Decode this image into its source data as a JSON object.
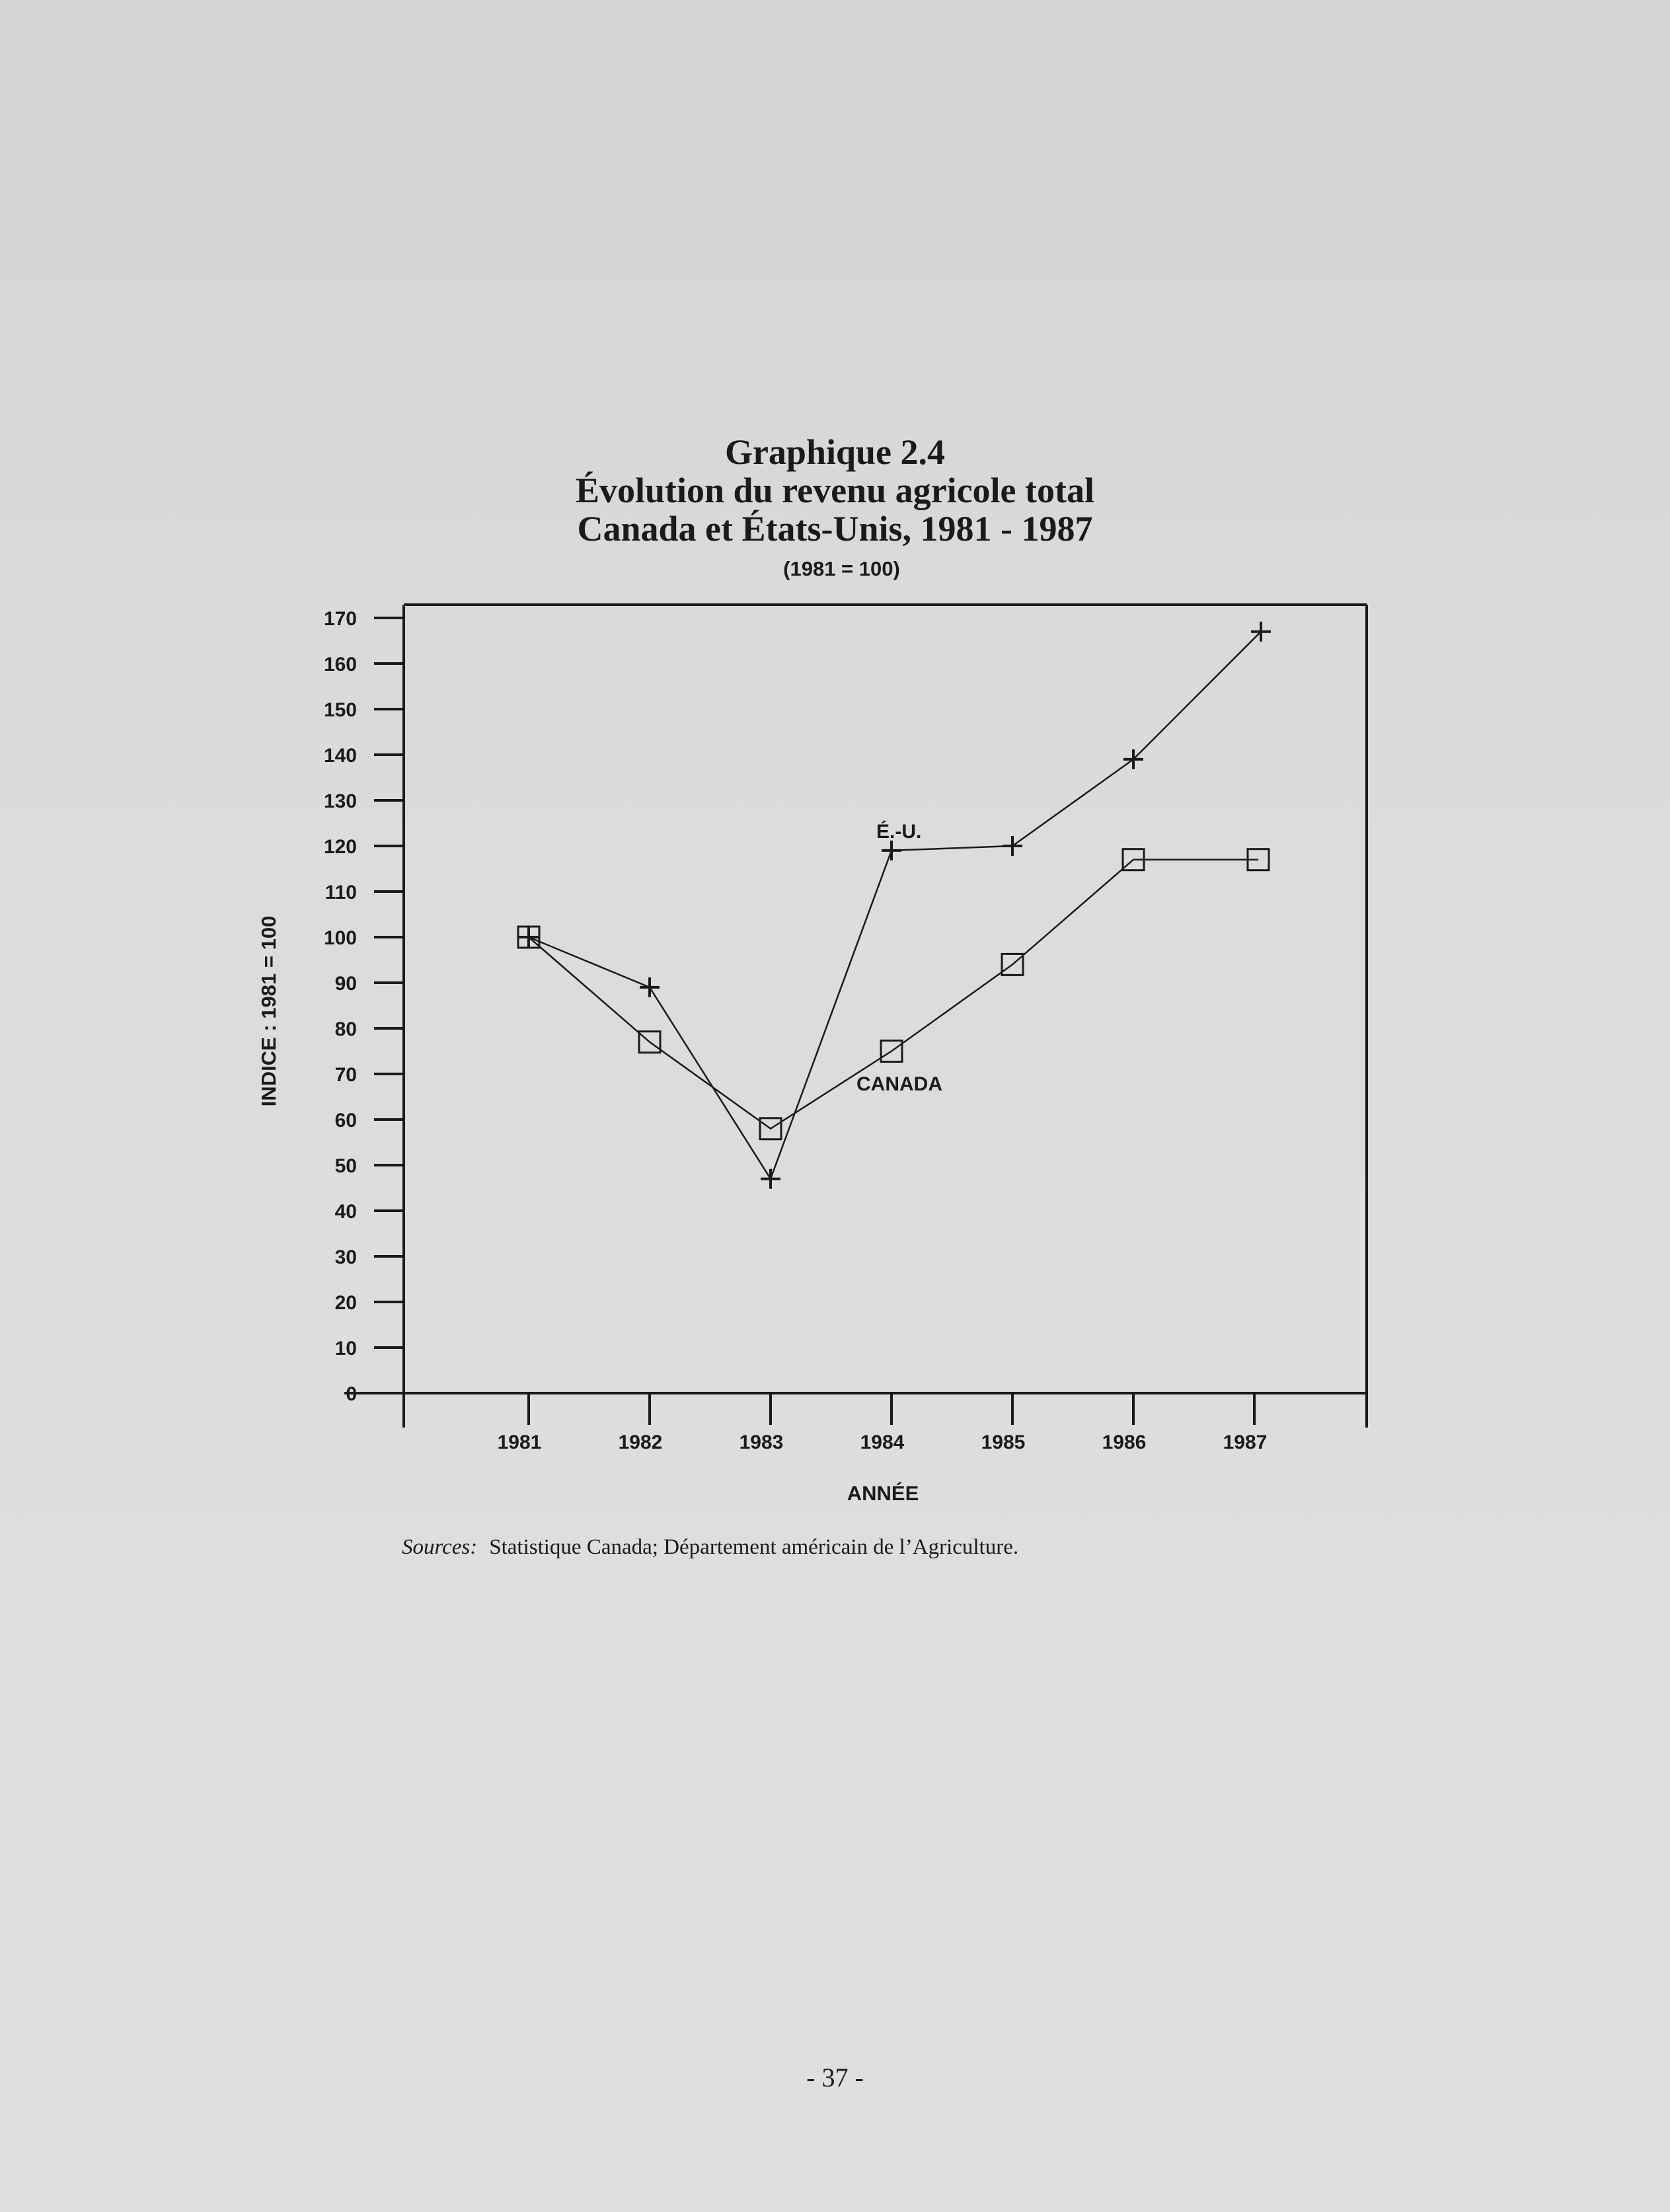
{
  "chart_data": {
    "type": "line",
    "title": "Graphique 2.4",
    "title_lines": [
      "Graphique 2.4",
      "Évolution du revenu agricole total",
      "Canada et États-Unis, 1981 - 1987"
    ],
    "subtitle": "(1981 = 100)",
    "xlabel": "ANNÉE",
    "ylabel": "INDICE : 1981 = 100",
    "categories": [
      "1981",
      "1982",
      "1983",
      "1984",
      "1985",
      "1986",
      "1987"
    ],
    "y_ticks": [
      "0",
      "10",
      "20",
      "30",
      "40",
      "50",
      "60",
      "70",
      "80",
      "90",
      "100",
      "110",
      "120",
      "130",
      "140",
      "150",
      "160",
      "170"
    ],
    "ylim": [
      0,
      170
    ],
    "grid": false,
    "series": [
      {
        "name": "É.-U.",
        "marker": "plus",
        "values": [
          100,
          89,
          47,
          119,
          120,
          139,
          167
        ]
      },
      {
        "name": "CANADA",
        "marker": "square",
        "values": [
          100,
          77,
          58,
          75,
          94,
          117,
          117
        ]
      }
    ]
  },
  "sources": {
    "label": "Sources:",
    "text": "Statistique Canada; Département américain de l’Agriculture."
  },
  "page_number": "- 37 -",
  "colors": {
    "ink": "#1a1a1a",
    "paper": "#dcdcda"
  }
}
